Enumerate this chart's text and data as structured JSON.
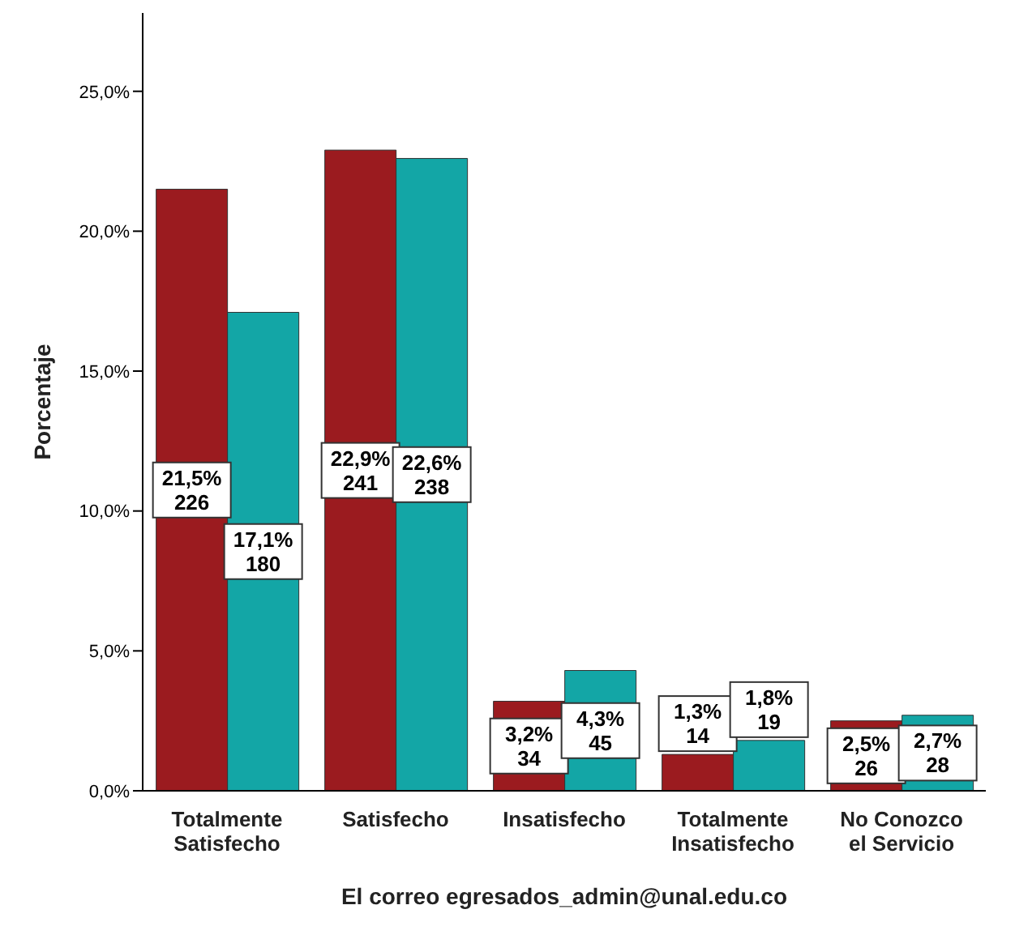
{
  "chart_data": {
    "type": "bar",
    "xlabel": "El correo egresados_admin@unal.edu.co",
    "ylabel": "Porcentaje",
    "categories": [
      "Totalmente\nSatisfecho",
      "Satisfecho",
      "Insatisfecho",
      "Totalmente\nInsatisfecho",
      "No Conozco\nel Servicio"
    ],
    "series": [
      {
        "color": "#9b1b1f",
        "values": [
          21.5,
          22.9,
          3.2,
          1.3,
          2.5
        ],
        "value_labels": [
          "21,5%\n226",
          "22,9%\n241",
          "3,2%\n34",
          "1,3%\n14",
          "2,5%\n26"
        ]
      },
      {
        "color": "#13a6a6",
        "values": [
          17.1,
          22.6,
          4.3,
          1.8,
          2.7
        ],
        "value_labels": [
          "17,1%\n180",
          "22,6%\n238",
          "4,3%\n45",
          "1,8%\n19",
          "2,7%\n28"
        ]
      }
    ],
    "ylim": [
      0,
      27.8
    ],
    "yticks": [
      {
        "value": 0,
        "label": "0,0%"
      },
      {
        "value": 5,
        "label": "5,0%"
      },
      {
        "value": 10,
        "label": "10,0%"
      },
      {
        "value": 15,
        "label": "15,0%"
      },
      {
        "value": 20,
        "label": "20,0%"
      },
      {
        "value": 25,
        "label": "25,0%"
      }
    ],
    "grid": false,
    "legend": false
  }
}
